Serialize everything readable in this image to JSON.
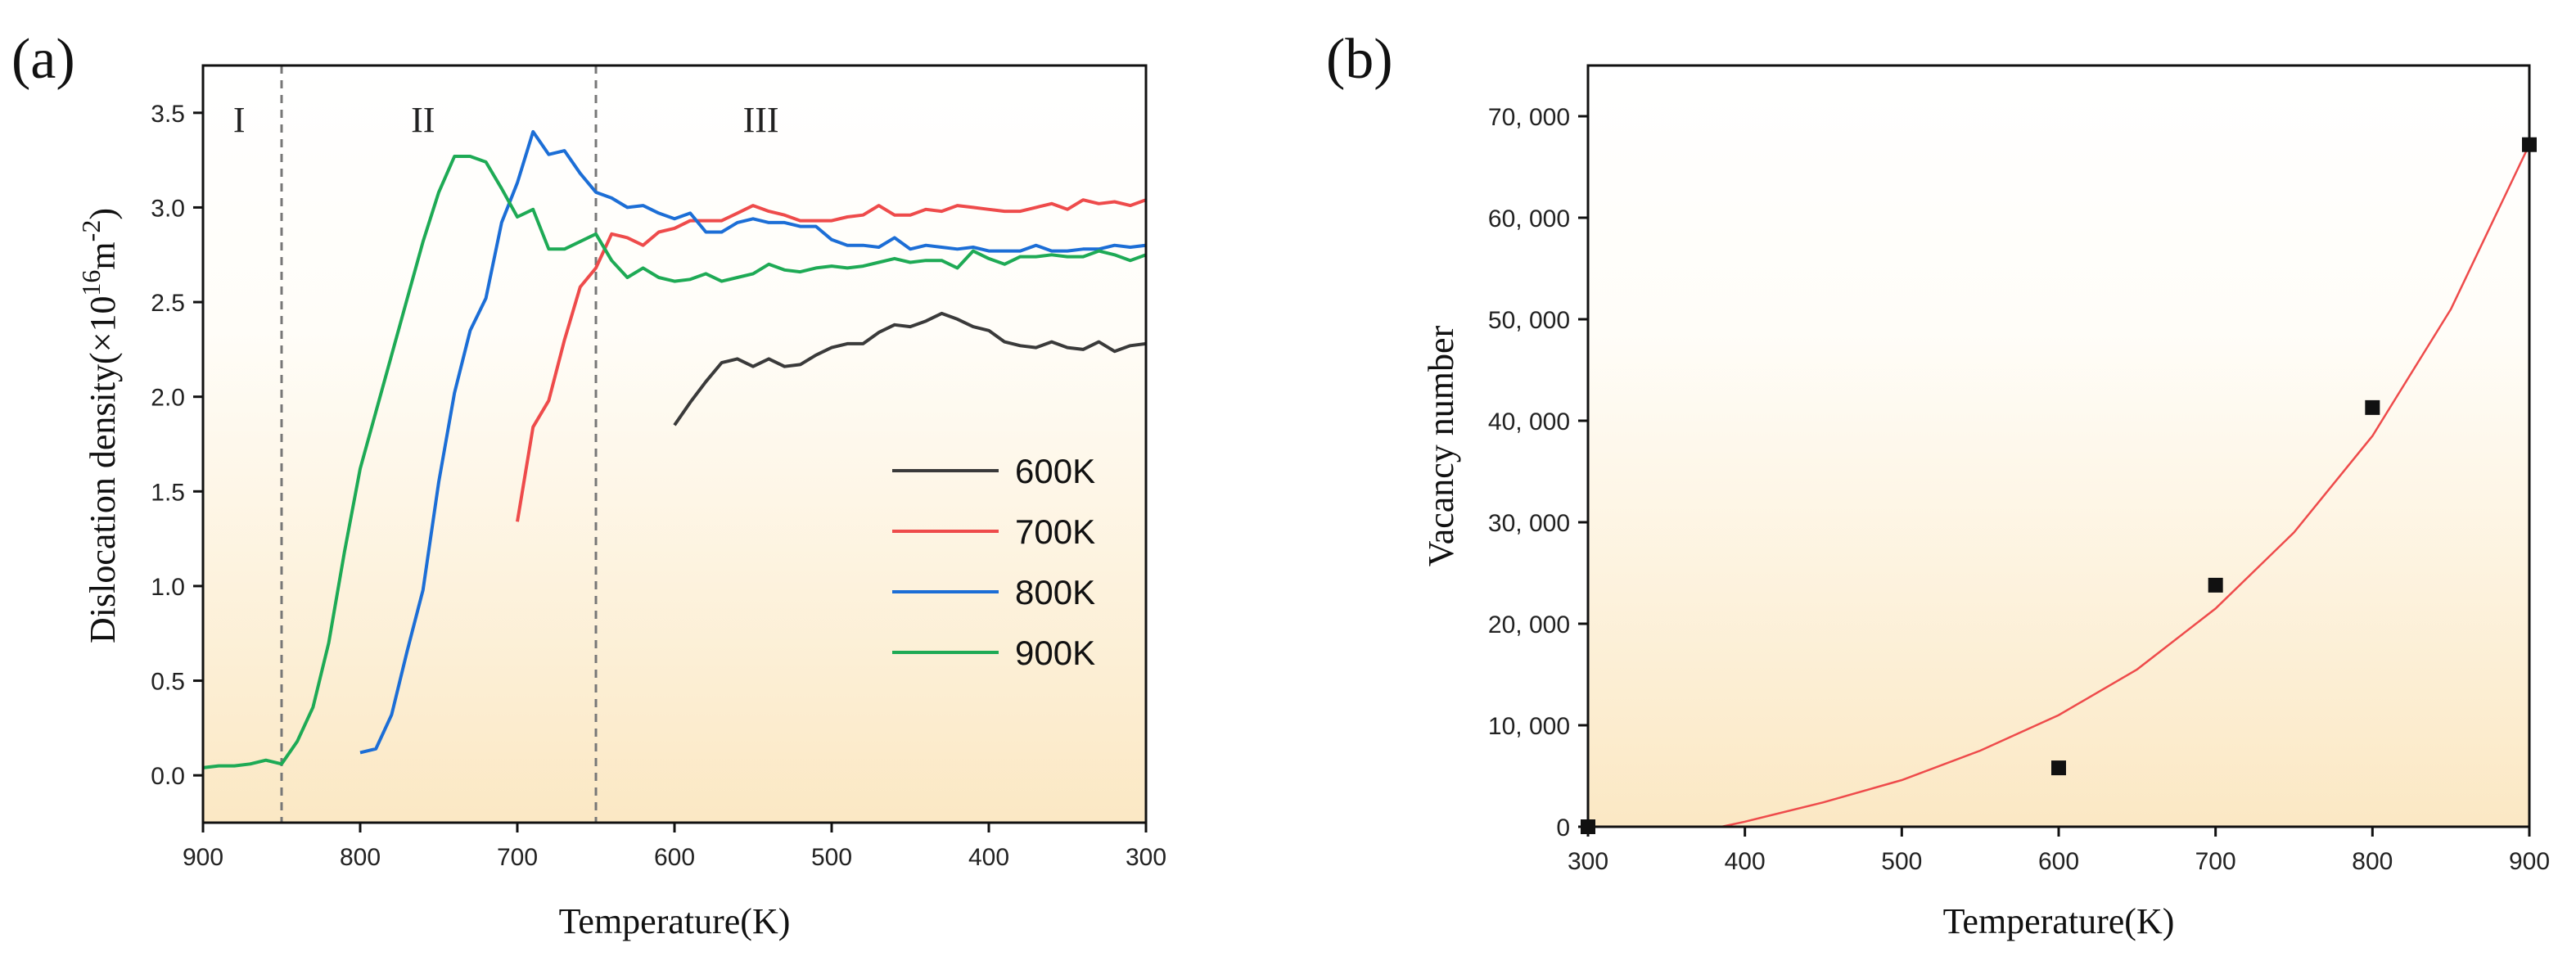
{
  "chart_data": [
    {
      "panel": "(a)",
      "type": "line",
      "xlabel": "Temperature(K)",
      "ylabel_main": "Dislocation density(×10",
      "ylabel_exp": "16",
      "ylabel_unit": "m",
      "ylabel_unit_exp": "-2",
      "ylabel_close": ")",
      "xlim": [
        900,
        300
      ],
      "ylim": [
        -0.25,
        3.75
      ],
      "xticks": [
        900,
        800,
        700,
        600,
        500,
        400,
        300
      ],
      "yticks": [
        0.0,
        0.5,
        1.0,
        1.5,
        2.0,
        2.5,
        3.0,
        3.5
      ],
      "xtick_labels": [
        "900",
        "800",
        "700",
        "600",
        "500",
        "400",
        "300"
      ],
      "ytick_labels": [
        "0.0",
        "0.5",
        "1.0",
        "1.5",
        "2.0",
        "2.5",
        "3.0",
        "3.5"
      ],
      "vlines": [
        850,
        650
      ],
      "regions": [
        {
          "label": "I",
          "x": 877,
          "y": 3.4
        },
        {
          "label": "II",
          "x": 760,
          "y": 3.4
        },
        {
          "label": "III",
          "x": 545,
          "y": 3.4
        }
      ],
      "series": [
        {
          "name": "600K",
          "color": "#3a3a3a",
          "x": [
            600,
            590,
            580,
            570,
            560,
            550,
            540,
            530,
            520,
            510,
            500,
            490,
            480,
            470,
            460,
            450,
            440,
            430,
            420,
            410,
            400,
            390,
            380,
            370,
            360,
            350,
            340,
            330,
            320,
            310,
            300
          ],
          "y": [
            1.85,
            1.97,
            2.08,
            2.18,
            2.2,
            2.16,
            2.2,
            2.16,
            2.17,
            2.22,
            2.26,
            2.28,
            2.28,
            2.34,
            2.38,
            2.37,
            2.4,
            2.44,
            2.41,
            2.37,
            2.35,
            2.29,
            2.27,
            2.26,
            2.29,
            2.26,
            2.25,
            2.29,
            2.24,
            2.27,
            2.28
          ]
        },
        {
          "name": "700K",
          "color": "#ee4b4b",
          "x": [
            700,
            690,
            680,
            670,
            660,
            650,
            640,
            630,
            620,
            610,
            600,
            590,
            580,
            570,
            560,
            550,
            540,
            530,
            520,
            510,
            500,
            490,
            480,
            470,
            460,
            450,
            440,
            430,
            420,
            410,
            400,
            390,
            380,
            370,
            360,
            350,
            340,
            330,
            320,
            310,
            300
          ],
          "y": [
            1.34,
            1.84,
            1.98,
            2.3,
            2.58,
            2.68,
            2.86,
            2.84,
            2.8,
            2.87,
            2.89,
            2.93,
            2.93,
            2.93,
            2.97,
            3.01,
            2.98,
            2.96,
            2.93,
            2.93,
            2.93,
            2.95,
            2.96,
            3.01,
            2.96,
            2.96,
            2.99,
            2.98,
            3.01,
            3.0,
            2.99,
            2.98,
            2.98,
            3.0,
            3.02,
            2.99,
            3.04,
            3.02,
            3.03,
            3.01,
            3.04
          ]
        },
        {
          "name": "800K",
          "color": "#1c6ed6",
          "x": [
            800,
            790,
            780,
            770,
            760,
            750,
            740,
            730,
            720,
            710,
            700,
            690,
            680,
            670,
            660,
            650,
            640,
            630,
            620,
            610,
            600,
            590,
            580,
            570,
            560,
            550,
            540,
            530,
            520,
            510,
            500,
            490,
            480,
            470,
            460,
            450,
            440,
            430,
            420,
            410,
            400,
            390,
            380,
            370,
            360,
            350,
            340,
            330,
            320,
            310,
            300
          ],
          "y": [
            0.12,
            0.14,
            0.32,
            0.66,
            0.98,
            1.55,
            2.02,
            2.35,
            2.52,
            2.92,
            3.13,
            3.4,
            3.28,
            3.3,
            3.18,
            3.08,
            3.05,
            3.0,
            3.01,
            2.97,
            2.94,
            2.97,
            2.87,
            2.87,
            2.92,
            2.94,
            2.92,
            2.92,
            2.9,
            2.9,
            2.83,
            2.8,
            2.8,
            2.79,
            2.84,
            2.78,
            2.8,
            2.79,
            2.78,
            2.79,
            2.77,
            2.77,
            2.77,
            2.8,
            2.77,
            2.77,
            2.78,
            2.78,
            2.8,
            2.79,
            2.8
          ]
        },
        {
          "name": "900K",
          "color": "#1eaa55",
          "x": [
            900,
            890,
            880,
            870,
            860,
            850,
            840,
            830,
            820,
            810,
            800,
            790,
            780,
            770,
            760,
            750,
            740,
            730,
            720,
            710,
            700,
            690,
            680,
            670,
            660,
            650,
            640,
            630,
            620,
            610,
            600,
            590,
            580,
            570,
            560,
            550,
            540,
            530,
            520,
            510,
            500,
            490,
            480,
            470,
            460,
            450,
            440,
            430,
            420,
            410,
            400,
            390,
            380,
            370,
            360,
            350,
            340,
            330,
            320,
            310,
            300
          ],
          "y": [
            0.04,
            0.05,
            0.05,
            0.06,
            0.08,
            0.06,
            0.18,
            0.36,
            0.7,
            1.18,
            1.62,
            1.92,
            2.22,
            2.52,
            2.82,
            3.08,
            3.27,
            3.27,
            3.24,
            3.1,
            2.95,
            2.99,
            2.78,
            2.78,
            2.82,
            2.86,
            2.72,
            2.63,
            2.68,
            2.63,
            2.61,
            2.62,
            2.65,
            2.61,
            2.63,
            2.65,
            2.7,
            2.67,
            2.66,
            2.68,
            2.69,
            2.68,
            2.69,
            2.71,
            2.73,
            2.71,
            2.72,
            2.72,
            2.68,
            2.77,
            2.73,
            2.7,
            2.74,
            2.74,
            2.75,
            2.74,
            2.74,
            2.77,
            2.75,
            2.72,
            2.75
          ]
        }
      ]
    },
    {
      "panel": "(b)",
      "type": "scatter",
      "xlabel": "Temperature(K)",
      "ylabel": "Vacancy number",
      "xlim": [
        300,
        900
      ],
      "ylim": [
        0,
        75000
      ],
      "xticks": [
        300,
        400,
        500,
        600,
        700,
        800,
        900
      ],
      "yticks": [
        0,
        10000,
        20000,
        30000,
        40000,
        50000,
        60000,
        70000
      ],
      "xtick_labels": [
        "300",
        "400",
        "500",
        "600",
        "700",
        "800",
        "900"
      ],
      "ytick_labels": [
        "0",
        "10, 000",
        "20, 000",
        "30, 000",
        "40, 000",
        "50, 000",
        "60, 000",
        "70, 000"
      ],
      "points": {
        "x": [
          300,
          600,
          700,
          800,
          900
        ],
        "y": [
          0,
          5800,
          23800,
          41300,
          67200
        ]
      },
      "fit": {
        "color": "#ee4b4b",
        "x": [
          385,
          400,
          450,
          500,
          550,
          600,
          650,
          700,
          750,
          800,
          850,
          900
        ],
        "y": [
          0,
          500,
          2400,
          4600,
          7500,
          11000,
          15500,
          21500,
          29000,
          38500,
          51000,
          67200
        ]
      }
    }
  ]
}
